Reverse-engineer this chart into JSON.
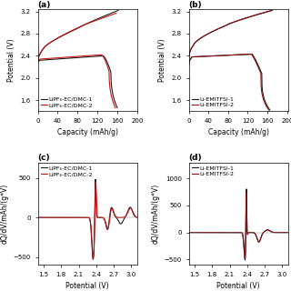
{
  "fig_width": 3.2,
  "fig_height": 3.2,
  "dpi": 100,
  "panel_a": {
    "title": "(a)",
    "xlabel": "Capacity (mAh/g)",
    "ylabel": "Potential (V)",
    "xlim": [
      0,
      200
    ],
    "ylim": [
      1.4,
      3.25
    ],
    "xticks": [
      0,
      40,
      80,
      120,
      160,
      200
    ],
    "yticks": [
      1.6,
      2.0,
      2.4,
      2.8,
      3.2
    ],
    "legend": [
      "LiPF₆-EC/DMC-1",
      "LiPF₆-EC/DMC-2"
    ],
    "colors": [
      "#1a1a1a",
      "#cc1111"
    ]
  },
  "panel_b": {
    "title": "(b)",
    "xlabel": "Capacity (mAh/g)",
    "ylabel": "Potential (V)",
    "xlim": [
      0,
      202
    ],
    "ylim": [
      1.4,
      3.25
    ],
    "xticks": [
      0,
      40,
      80,
      120,
      160,
      200
    ],
    "yticks": [
      1.6,
      2.0,
      2.4,
      2.8,
      3.2
    ],
    "legend": [
      "Li-EMITFSI-1",
      "Li-EMITFSI-2"
    ],
    "colors": [
      "#1a1a1a",
      "#8b1010"
    ]
  },
  "panel_c": {
    "title": "(c)",
    "xlabel": "Potential (V)",
    "ylabel": "dQ/dV/mAh/(g*V)",
    "xlim": [
      1.4,
      3.1
    ],
    "ylim": [
      -600,
      700
    ],
    "xticks": [
      1.5,
      1.8,
      2.1,
      2.4,
      2.7,
      3.0
    ],
    "yticks": [
      -500,
      0,
      500
    ],
    "legend": [
      "LiPF₆-EC/DMC-1",
      "LiPF₆-EC/DMC-2"
    ],
    "colors": [
      "#1a1a1a",
      "#cc1111"
    ]
  },
  "panel_d": {
    "title": "(d)",
    "xlabel": "Potential (V)",
    "ylabel": "dQ/dV/mAh/(g*V)",
    "xlim": [
      1.4,
      3.1
    ],
    "ylim": [
      -600,
      1300
    ],
    "xticks": [
      1.5,
      1.8,
      2.1,
      2.4,
      2.7,
      3.0
    ],
    "yticks": [
      -500,
      0,
      500,
      1000
    ],
    "legend": [
      "Li-EMITFSI-1",
      "Li-EMITFSI-2"
    ],
    "colors": [
      "#1a1a1a",
      "#8b1010"
    ]
  },
  "background_color": "#ffffff",
  "tick_fontsize": 5,
  "label_fontsize": 5.5,
  "legend_fontsize": 4.5,
  "title_fontsize": 6.5
}
